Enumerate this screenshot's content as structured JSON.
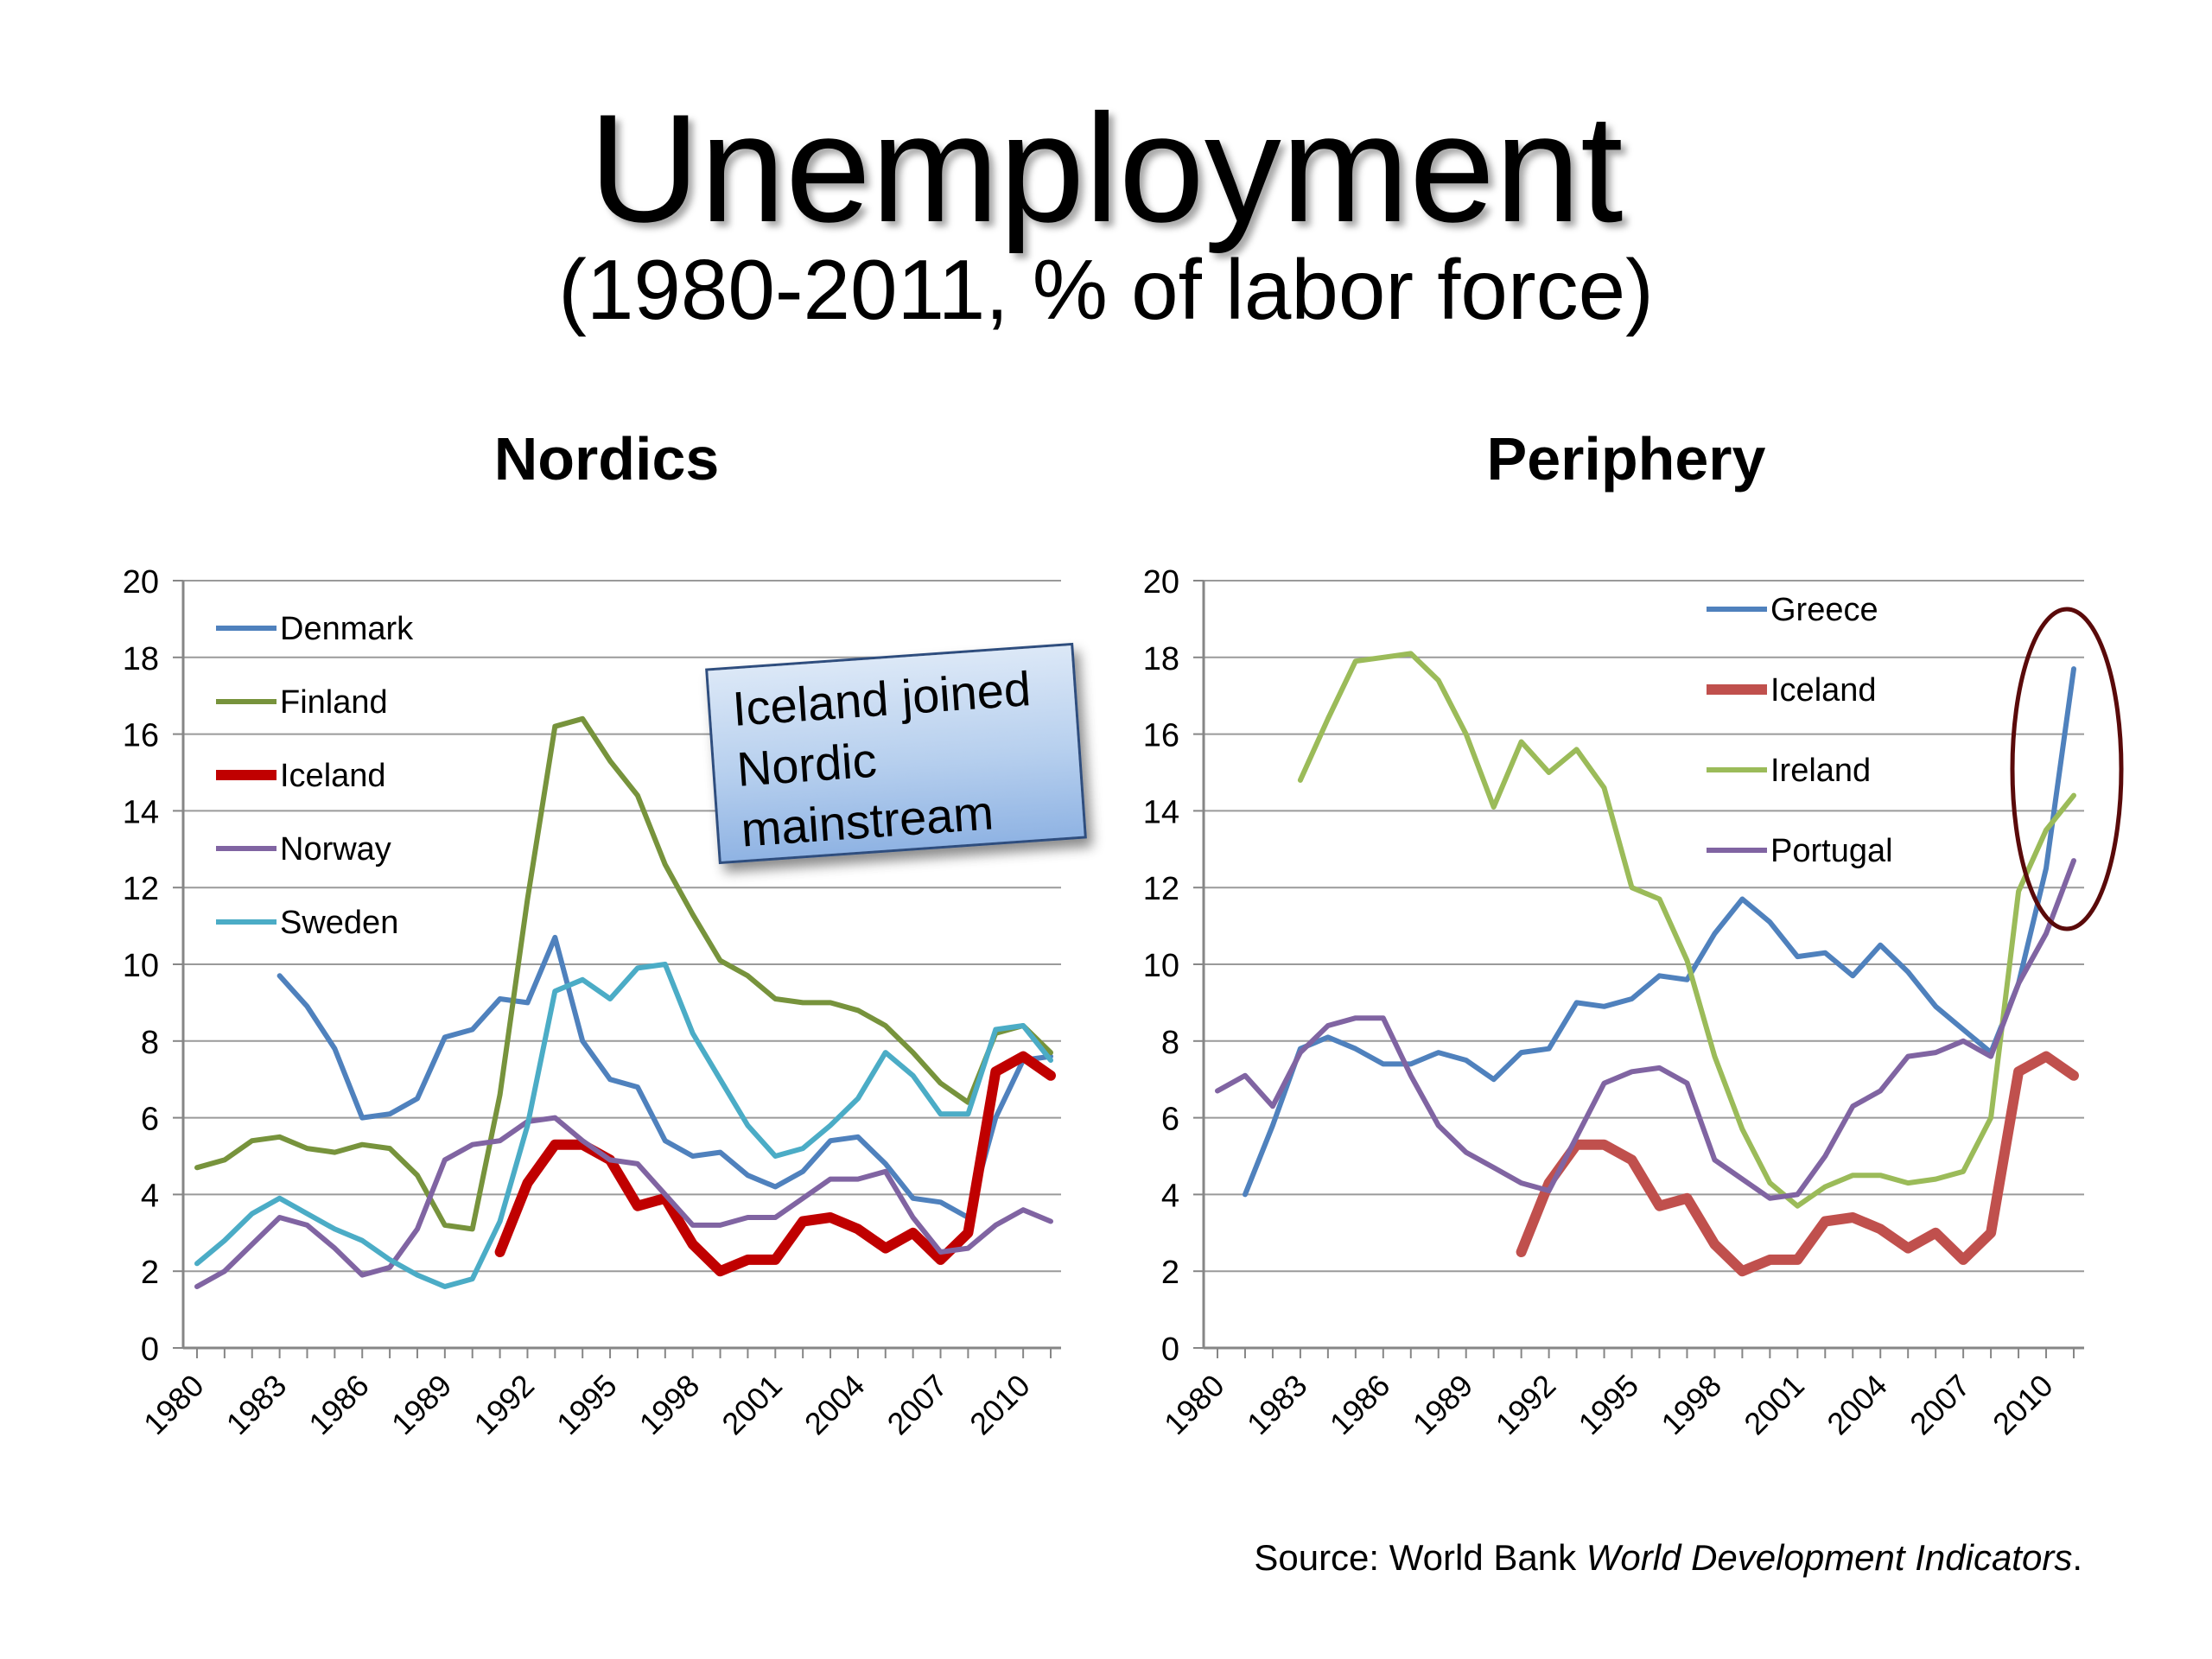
{
  "header": {
    "title": "Unemployment",
    "subtitle": "(1980-2011, % of labor force)"
  },
  "source": {
    "prefix": "Source: World Bank ",
    "italic": "World Development Indicators",
    "suffix": "."
  },
  "annotation": {
    "lines": [
      "Iceland joined",
      "Nordic",
      "mainstream"
    ]
  },
  "chart_data": [
    {
      "type": "line",
      "title": "Nordics",
      "xlabel": "",
      "ylabel": "",
      "xlim": [
        1980,
        2011
      ],
      "ylim": [
        0,
        20
      ],
      "y_ticks": [
        0,
        2,
        4,
        6,
        8,
        10,
        12,
        14,
        16,
        18,
        20
      ],
      "x_ticks": [
        1980,
        1983,
        1986,
        1989,
        1992,
        1995,
        1998,
        2001,
        2004,
        2007,
        2010
      ],
      "grid": true,
      "legend_position": "top-left",
      "series": [
        {
          "name": "Denmark",
          "color": "#4f81bd",
          "width": 6,
          "x": [
            1983,
            1984,
            1985,
            1986,
            1987,
            1988,
            1989,
            1990,
            1991,
            1992,
            1993,
            1994,
            1995,
            1996,
            1997,
            1998,
            1999,
            2000,
            2001,
            2002,
            2003,
            2004,
            2005,
            2006,
            2007,
            2008,
            2009,
            2010,
            2011
          ],
          "values": [
            9.7,
            8.9,
            7.8,
            6.0,
            6.1,
            6.5,
            8.1,
            8.3,
            9.1,
            9.0,
            10.7,
            8.0,
            7.0,
            6.8,
            5.4,
            5.0,
            5.1,
            4.5,
            4.2,
            4.6,
            5.4,
            5.5,
            4.8,
            3.9,
            3.8,
            3.4,
            6.0,
            7.5,
            7.6
          ]
        },
        {
          "name": "Finland",
          "color": "#77933c",
          "width": 6,
          "x": [
            1980,
            1981,
            1982,
            1983,
            1984,
            1985,
            1986,
            1987,
            1988,
            1989,
            1990,
            1991,
            1992,
            1993,
            1994,
            1995,
            1996,
            1997,
            1998,
            1999,
            2000,
            2001,
            2002,
            2003,
            2004,
            2005,
            2006,
            2007,
            2008,
            2009,
            2010,
            2011
          ],
          "values": [
            4.7,
            4.9,
            5.4,
            5.5,
            5.2,
            5.1,
            5.3,
            5.2,
            4.5,
            3.2,
            3.1,
            6.6,
            11.7,
            16.2,
            16.4,
            15.3,
            14.4,
            12.6,
            11.3,
            10.1,
            9.7,
            9.1,
            9.0,
            9.0,
            8.8,
            8.4,
            7.7,
            6.9,
            6.4,
            8.2,
            8.4,
            7.7
          ]
        },
        {
          "name": "Iceland",
          "color": "#c00000",
          "width": 12,
          "x": [
            1991,
            1992,
            1993,
            1994,
            1995,
            1996,
            1997,
            1998,
            1999,
            2000,
            2001,
            2002,
            2003,
            2004,
            2005,
            2006,
            2007,
            2008,
            2009,
            2010,
            2011
          ],
          "values": [
            2.5,
            4.3,
            5.3,
            5.3,
            4.9,
            3.7,
            3.9,
            2.7,
            2.0,
            2.3,
            2.3,
            3.3,
            3.4,
            3.1,
            2.6,
            3.0,
            2.3,
            3.0,
            7.2,
            7.6,
            7.1
          ]
        },
        {
          "name": "Norway",
          "color": "#8064a2",
          "width": 6,
          "x": [
            1980,
            1981,
            1982,
            1983,
            1984,
            1985,
            1986,
            1987,
            1988,
            1989,
            1990,
            1991,
            1992,
            1993,
            1994,
            1995,
            1996,
            1997,
            1998,
            1999,
            2000,
            2001,
            2002,
            2003,
            2004,
            2005,
            2006,
            2007,
            2008,
            2009,
            2010,
            2011
          ],
          "values": [
            1.6,
            2.0,
            2.7,
            3.4,
            3.2,
            2.6,
            1.9,
            2.1,
            3.1,
            4.9,
            5.3,
            5.4,
            5.9,
            6.0,
            5.4,
            4.9,
            4.8,
            4.0,
            3.2,
            3.2,
            3.4,
            3.4,
            3.9,
            4.4,
            4.4,
            4.6,
            3.4,
            2.5,
            2.6,
            3.2,
            3.6,
            3.3
          ]
        },
        {
          "name": "Sweden",
          "color": "#4bacc6",
          "width": 6,
          "x": [
            1980,
            1981,
            1982,
            1983,
            1984,
            1985,
            1986,
            1987,
            1988,
            1989,
            1990,
            1991,
            1992,
            1993,
            1994,
            1995,
            1996,
            1997,
            1998,
            1999,
            2000,
            2001,
            2002,
            2003,
            2004,
            2005,
            2006,
            2007,
            2008,
            2009,
            2010,
            2011
          ],
          "values": [
            2.2,
            2.8,
            3.5,
            3.9,
            3.5,
            3.1,
            2.8,
            2.3,
            1.9,
            1.6,
            1.8,
            3.3,
            5.8,
            9.3,
            9.6,
            9.1,
            9.9,
            10.0,
            8.2,
            7.0,
            5.8,
            5.0,
            5.2,
            5.8,
            6.5,
            7.7,
            7.1,
            6.1,
            6.1,
            8.3,
            8.4,
            7.5
          ]
        }
      ]
    },
    {
      "type": "line",
      "title": "Periphery",
      "xlabel": "",
      "ylabel": "",
      "xlim": [
        1980,
        2011
      ],
      "ylim": [
        0,
        20
      ],
      "y_ticks": [
        0,
        2,
        4,
        6,
        8,
        10,
        12,
        14,
        16,
        18,
        20
      ],
      "x_ticks": [
        1980,
        1983,
        1986,
        1989,
        1992,
        1995,
        1998,
        2001,
        2004,
        2007,
        2010
      ],
      "grid": true,
      "legend_position": "top-right",
      "series": [
        {
          "name": "Greece",
          "color": "#4f81bd",
          "width": 6,
          "x": [
            1981,
            1982,
            1983,
            1984,
            1985,
            1986,
            1987,
            1988,
            1989,
            1990,
            1991,
            1992,
            1993,
            1994,
            1995,
            1996,
            1997,
            1998,
            1999,
            2000,
            2001,
            2002,
            2003,
            2004,
            2005,
            2006,
            2007,
            2008,
            2009,
            2010,
            2011
          ],
          "values": [
            4.0,
            5.8,
            7.8,
            8.1,
            7.8,
            7.4,
            7.4,
            7.7,
            7.5,
            7.0,
            7.7,
            7.8,
            9.0,
            8.9,
            9.1,
            9.7,
            9.6,
            10.8,
            11.7,
            11.1,
            10.2,
            10.3,
            9.7,
            10.5,
            9.8,
            8.9,
            8.3,
            7.7,
            9.5,
            12.5,
            17.7
          ]
        },
        {
          "name": "Iceland",
          "color": "#c0504d",
          "width": 12,
          "x": [
            1991,
            1992,
            1993,
            1994,
            1995,
            1996,
            1997,
            1998,
            1999,
            2000,
            2001,
            2002,
            2003,
            2004,
            2005,
            2006,
            2007,
            2008,
            2009,
            2010,
            2011
          ],
          "values": [
            2.5,
            4.3,
            5.3,
            5.3,
            4.9,
            3.7,
            3.9,
            2.7,
            2.0,
            2.3,
            2.3,
            3.3,
            3.4,
            3.1,
            2.6,
            3.0,
            2.3,
            3.0,
            7.2,
            7.6,
            7.1
          ]
        },
        {
          "name": "Ireland",
          "color": "#9bbb59",
          "width": 6,
          "x": [
            1983,
            1984,
            1985,
            1986,
            1987,
            1988,
            1989,
            1990,
            1991,
            1992,
            1993,
            1994,
            1995,
            1996,
            1997,
            1998,
            1999,
            2000,
            2001,
            2002,
            2003,
            2004,
            2005,
            2006,
            2007,
            2008,
            2009,
            2010,
            2011
          ],
          "values": [
            14.8,
            16.4,
            17.9,
            18.0,
            18.1,
            17.4,
            16.0,
            14.1,
            15.8,
            15.0,
            15.6,
            14.6,
            12.0,
            11.7,
            10.1,
            7.6,
            5.7,
            4.3,
            3.7,
            4.2,
            4.5,
            4.5,
            4.3,
            4.4,
            4.6,
            6.0,
            11.9,
            13.5,
            14.4
          ]
        },
        {
          "name": "Portugal",
          "color": "#8064a2",
          "width": 6,
          "x": [
            1980,
            1981,
            1982,
            1983,
            1984,
            1985,
            1986,
            1987,
            1988,
            1989,
            1990,
            1991,
            1992,
            1993,
            1994,
            1995,
            1996,
            1997,
            1998,
            1999,
            2000,
            2001,
            2002,
            2003,
            2004,
            2005,
            2006,
            2007,
            2008,
            2009,
            2010,
            2011
          ],
          "values": [
            6.7,
            7.1,
            6.3,
            7.7,
            8.4,
            8.6,
            8.6,
            7.1,
            5.8,
            5.1,
            4.7,
            4.3,
            4.1,
            5.5,
            6.9,
            7.2,
            7.3,
            6.9,
            4.9,
            4.4,
            3.9,
            4.0,
            5.0,
            6.3,
            6.7,
            7.6,
            7.7,
            8.0,
            7.6,
            9.5,
            10.8,
            12.7
          ]
        }
      ]
    }
  ]
}
